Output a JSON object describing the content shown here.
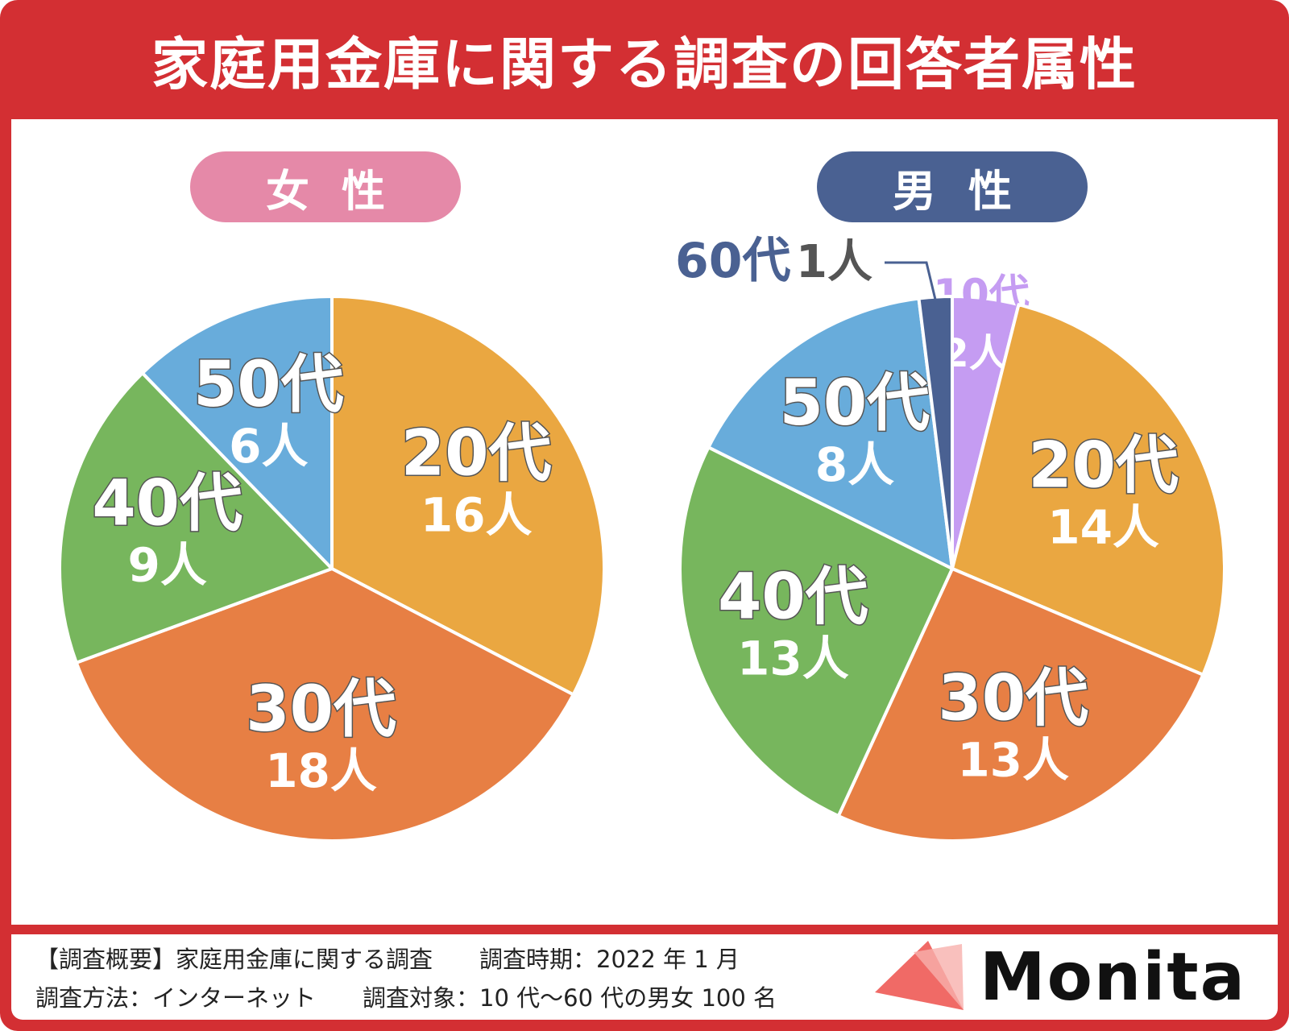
{
  "title": "家庭用金庫に関する調査の回答者属性",
  "colors": {
    "frame": "#d32f33",
    "teens": "#c59cf2",
    "twenties": "#eaa741",
    "thirties": "#e77f44",
    "forties": "#77b65d",
    "fifties": "#68acdb",
    "sixties": "#4a6192",
    "female_pill": "#e589a8",
    "male_pill": "#4a6192"
  },
  "female_label": "女性",
  "male_label": "男性",
  "chart_data": [
    {
      "type": "pie",
      "title": "女性",
      "categories": [
        "20代",
        "30代",
        "40代",
        "50代"
      ],
      "values": [
        16,
        18,
        9,
        6
      ],
      "labels": [
        "16人",
        "18人",
        "9人",
        "6人"
      ]
    },
    {
      "type": "pie",
      "title": "男性",
      "categories": [
        "10代",
        "20代",
        "30代",
        "40代",
        "50代",
        "60代"
      ],
      "values": [
        2,
        14,
        13,
        13,
        8,
        1
      ],
      "labels": [
        "2人",
        "14人",
        "13人",
        "13人",
        "8人",
        "1人"
      ]
    }
  ],
  "footer": {
    "line1": "【調査概要】家庭用金庫に関する調査　　調査時期：2022 年 1 月",
    "line2": "調査方法：インターネット　　調査対象：10 代〜60 代の男女 100 名"
  },
  "logo": "Monita"
}
